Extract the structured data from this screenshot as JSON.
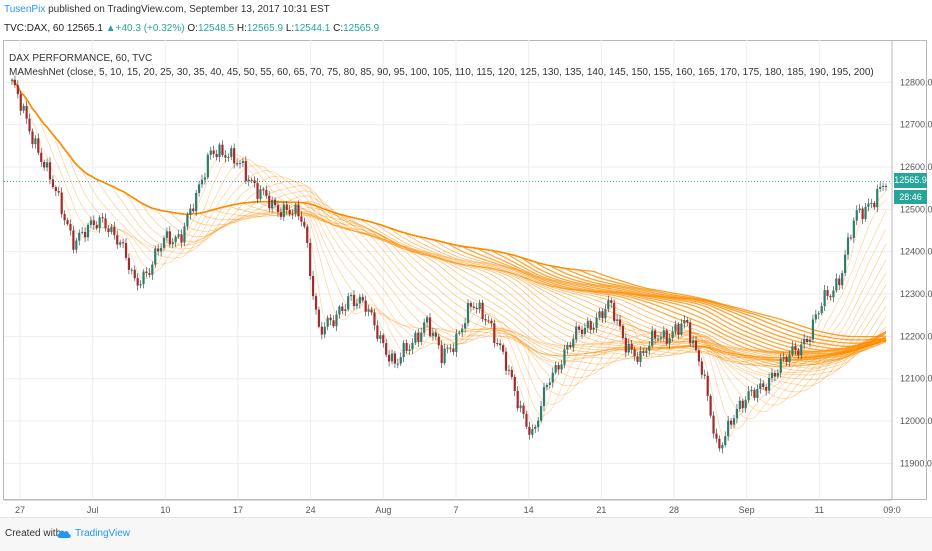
{
  "header": {
    "author": "TusenPix",
    "published": "published on TradingView.com, September 13, 2017 10:31 EST",
    "symbol_line": "TVC:DAX, 60",
    "last": "12565.1",
    "change": "▲+40.3 (+0.32%)",
    "o_label": "O:",
    "o_value": "12548.5",
    "h_label": "H:",
    "h_value": "12565.9",
    "l_label": "L:",
    "l_value": "12544.1",
    "c_label": "C:",
    "c_value": "12565.9"
  },
  "legend": {
    "series_title": "DAX PERFORMANCE, 60, TVC",
    "indicator": "MAMeshNet (close, 5, 10, 15, 20, 25, 30, 35, 40, 45, 50, 55, 60, 65, 70, 75, 80, 85, 90, 95, 100, 105, 110, 115, 120, 125, 130, 135, 140, 145, 150, 155, 160, 165, 170, 175, 180, 185, 190, 195, 200)"
  },
  "price_tag": "12565.9",
  "time_tag": "28:46",
  "footer": {
    "created_with": "Created with",
    "brand": "TradingView"
  },
  "colors": {
    "up": "#26a69a",
    "down": "#ef5350",
    "ma_mesh": "#ff8c00",
    "grid": "#eeeeee",
    "accent": "#2196f3"
  },
  "chart_data": {
    "type": "line",
    "title": "DAX PERFORMANCE, 60, TVC",
    "ylim": [
      11830,
      12900
    ],
    "y_ticks": [
      11900,
      12000,
      12100,
      12200,
      12300,
      12400,
      12500,
      12600,
      12700,
      12800
    ],
    "x_ticks": [
      "27",
      "Jul",
      "10",
      "17",
      "24",
      "Aug",
      "7",
      "14",
      "21",
      "28",
      "Sep",
      "11",
      "09:0"
    ],
    "grid": true,
    "last_price": 12565.9,
    "series": [
      {
        "name": "DAX",
        "x": [
          "Jun 26",
          "Jun 27",
          "Jun 28",
          "Jun 29",
          "Jun 30",
          "Jul 3",
          "Jul 4",
          "Jul 5",
          "Jul 6",
          "Jul 7",
          "Jul 10",
          "Jul 11",
          "Jul 12",
          "Jul 13",
          "Jul 14",
          "Jul 17",
          "Jul 18",
          "Jul 19",
          "Jul 20",
          "Jul 21",
          "Jul 24",
          "Jul 25",
          "Jul 26",
          "Jul 27",
          "Jul 28",
          "Jul 31",
          "Aug 1",
          "Aug 2",
          "Aug 3",
          "Aug 4",
          "Aug 7",
          "Aug 8",
          "Aug 9",
          "Aug 10",
          "Aug 11",
          "Aug 14",
          "Aug 15",
          "Aug 16",
          "Aug 17",
          "Aug 18",
          "Aug 21",
          "Aug 22",
          "Aug 23",
          "Aug 24",
          "Aug 25",
          "Aug 28",
          "Aug 29",
          "Aug 30",
          "Aug 31",
          "Sep 1",
          "Sep 4",
          "Sep 5",
          "Sep 6",
          "Sep 7",
          "Sep 8",
          "Sep 11",
          "Sep 12",
          "Sep 13"
        ],
        "values": [
          12800,
          12700,
          12620,
          12520,
          12430,
          12450,
          12480,
          12420,
          12330,
          12360,
          12430,
          12440,
          12520,
          12650,
          12620,
          12610,
          12540,
          12510,
          12500,
          12470,
          12220,
          12230,
          12300,
          12270,
          12200,
          12130,
          12180,
          12240,
          12150,
          12200,
          12270,
          12250,
          12150,
          12050,
          11960,
          12100,
          12160,
          12210,
          12240,
          12270,
          12190,
          12140,
          12210,
          12200,
          12230,
          12130,
          11920,
          12020,
          12050,
          12090,
          12120,
          12170,
          12200,
          12290,
          12340,
          12480,
          12520,
          12560
        ]
      }
    ]
  }
}
